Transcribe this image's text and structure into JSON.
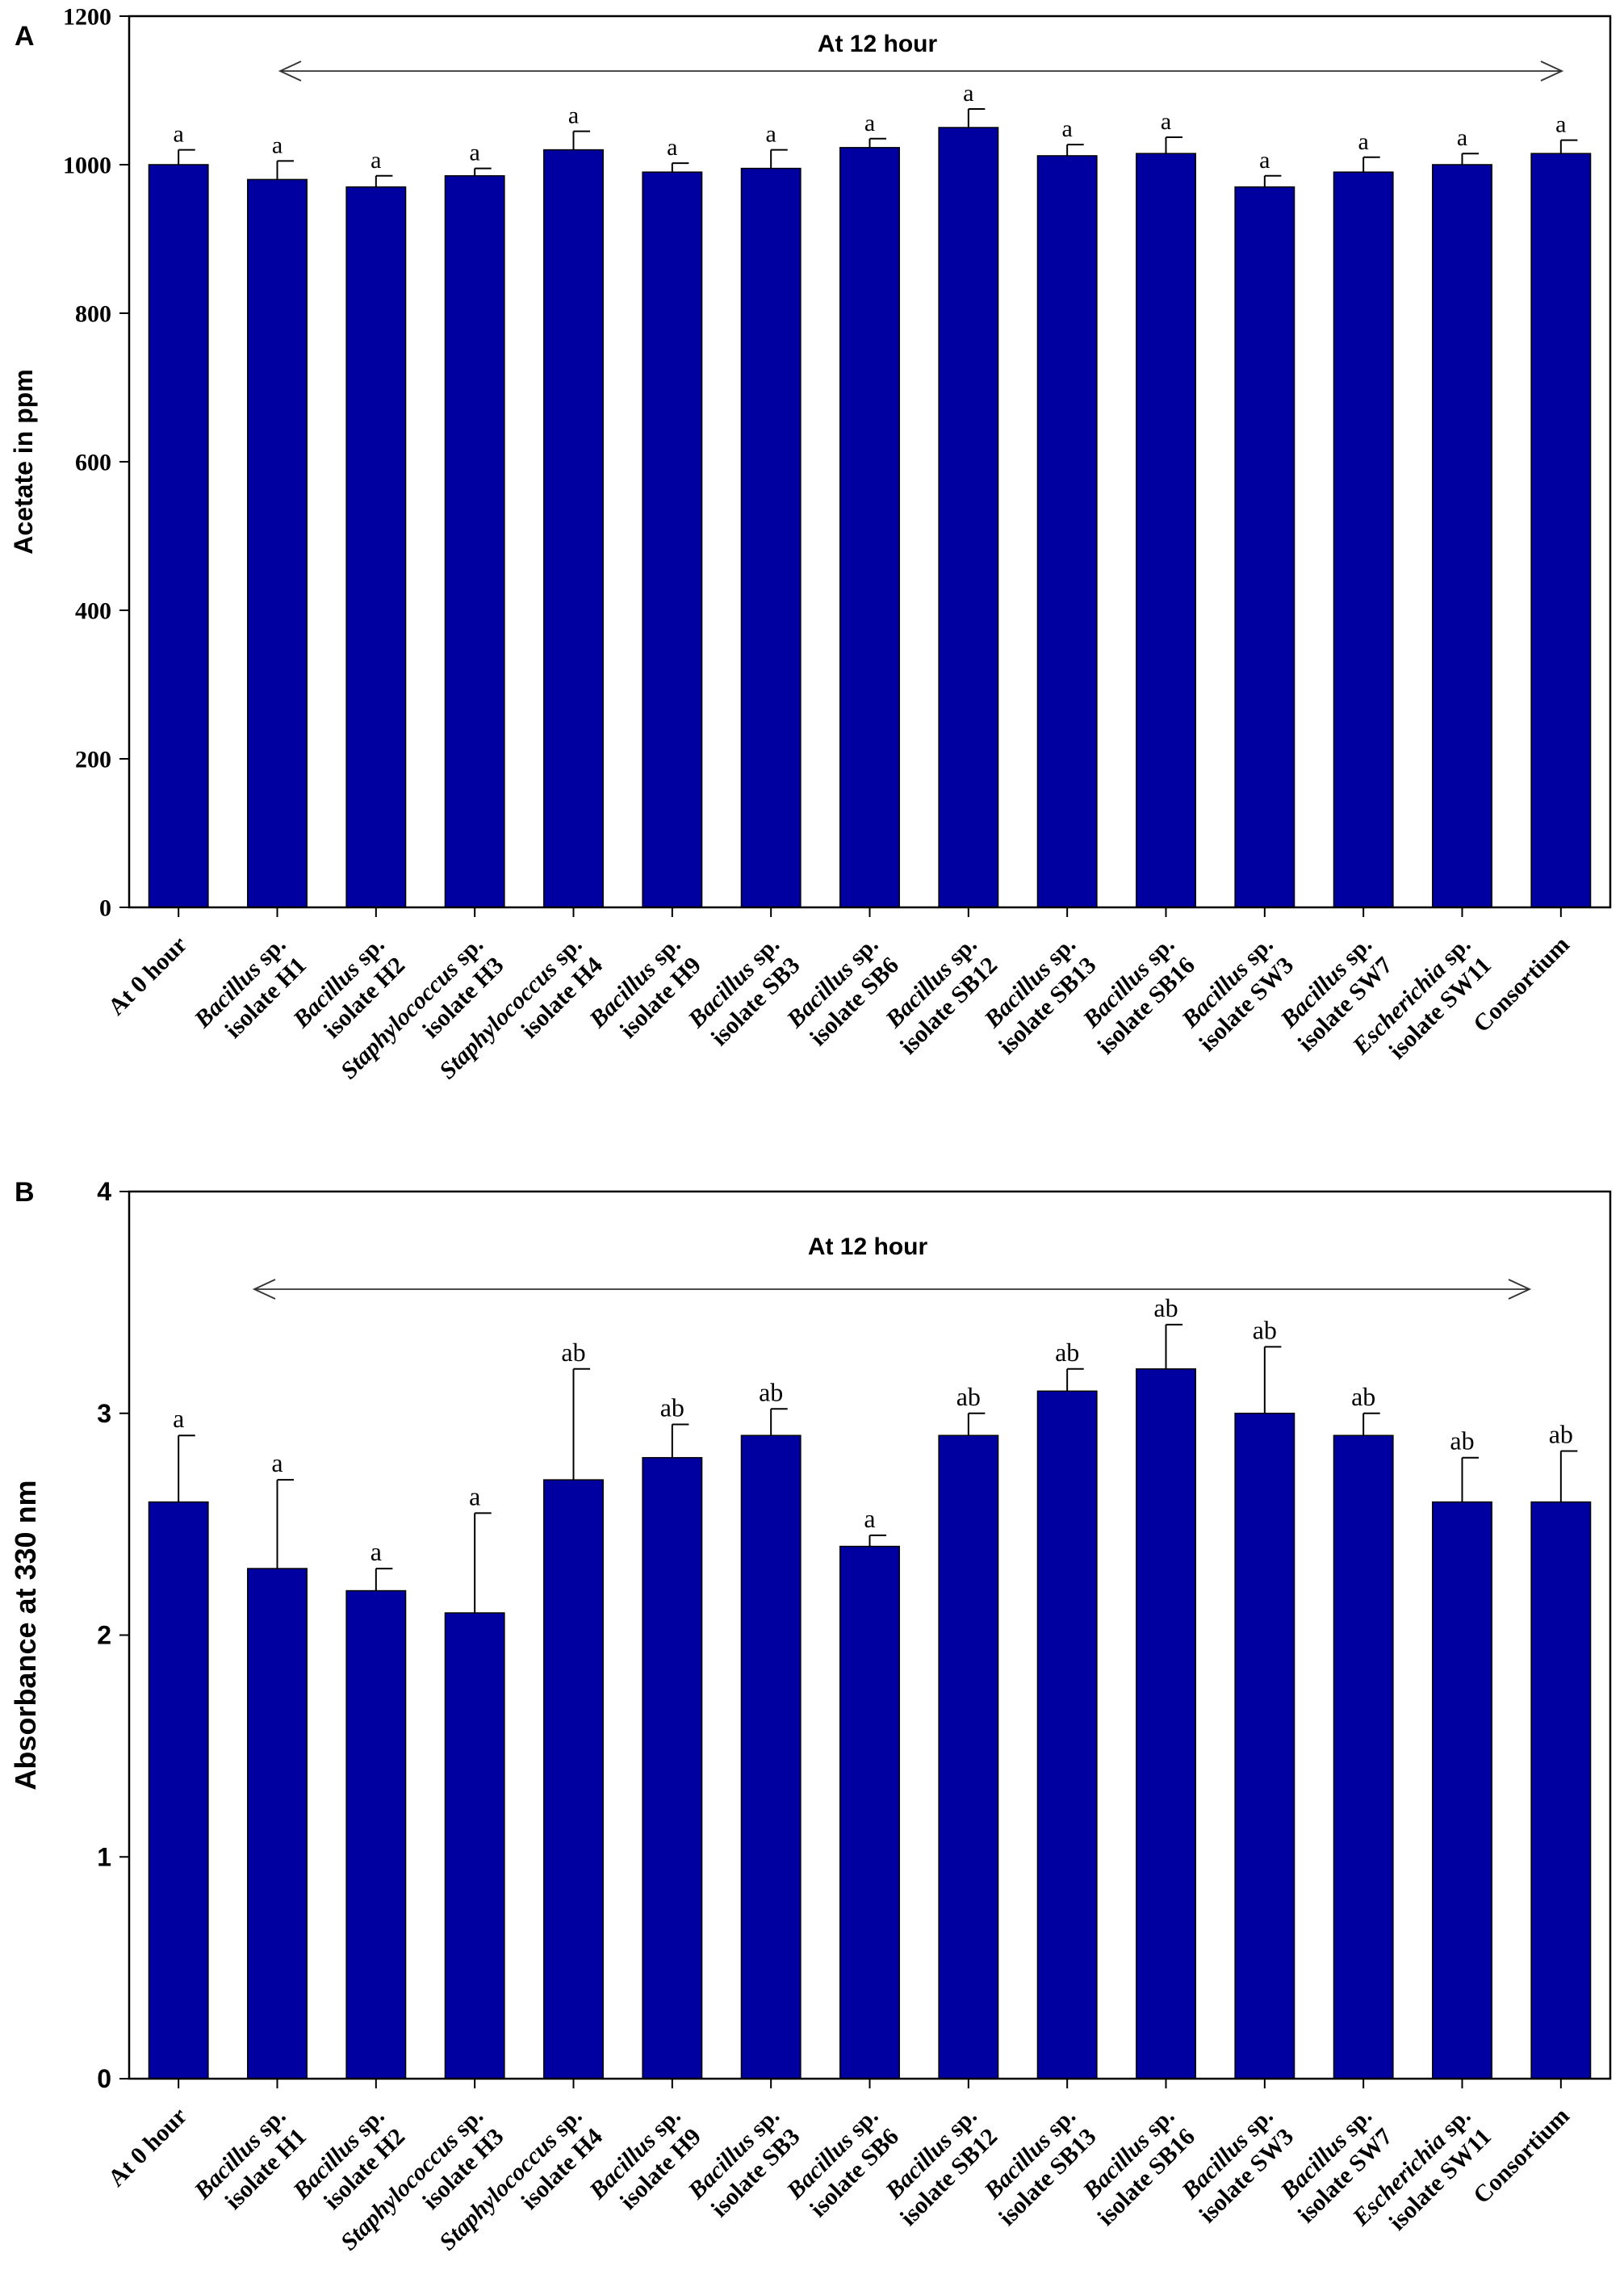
{
  "chart_data": [
    {
      "panel": "A",
      "type": "bar",
      "title": "",
      "annotation": "At 12 hour",
      "xlabel": "",
      "ylabel": "Acetate in ppm",
      "ylim": [
        0,
        1200
      ],
      "yticks": [
        "0",
        "200",
        "400",
        "600",
        "800",
        "1000",
        "1200"
      ],
      "grid": false,
      "bar_color": "#0000A0",
      "categories": [
        {
          "lines": [
            [
              {
                "t": "At 0 hour",
                "i": false
              }
            ]
          ]
        },
        {
          "lines": [
            [
              {
                "t": "Bacillus",
                "i": true
              },
              {
                "t": " sp.",
                "i": false
              }
            ],
            [
              {
                "t": "isolate H1",
                "i": false
              }
            ]
          ]
        },
        {
          "lines": [
            [
              {
                "t": "Bacillus",
                "i": true
              },
              {
                "t": " sp.",
                "i": false
              }
            ],
            [
              {
                "t": "isolate H2",
                "i": false
              }
            ]
          ]
        },
        {
          "lines": [
            [
              {
                "t": "Staphylococcus",
                "i": true
              },
              {
                "t": " sp.",
                "i": false
              }
            ],
            [
              {
                "t": "isolate H3",
                "i": false
              }
            ]
          ]
        },
        {
          "lines": [
            [
              {
                "t": "Staphylococcus",
                "i": true
              },
              {
                "t": " sp.",
                "i": false
              }
            ],
            [
              {
                "t": "isolate H4",
                "i": false
              }
            ]
          ]
        },
        {
          "lines": [
            [
              {
                "t": "Bacillus",
                "i": true
              },
              {
                "t": " sp.",
                "i": false
              }
            ],
            [
              {
                "t": "isolate H9",
                "i": false
              }
            ]
          ]
        },
        {
          "lines": [
            [
              {
                "t": "Bacillus",
                "i": true
              },
              {
                "t": " sp.",
                "i": false
              }
            ],
            [
              {
                "t": "isolate SB3",
                "i": false
              }
            ]
          ]
        },
        {
          "lines": [
            [
              {
                "t": "Bacillus",
                "i": true
              },
              {
                "t": " sp.",
                "i": false
              }
            ],
            [
              {
                "t": "isolate SB6",
                "i": false
              }
            ]
          ]
        },
        {
          "lines": [
            [
              {
                "t": "Bacillus",
                "i": true
              },
              {
                "t": " sp.",
                "i": false
              }
            ],
            [
              {
                "t": "isolate SB12",
                "i": false
              }
            ]
          ]
        },
        {
          "lines": [
            [
              {
                "t": "Bacillus",
                "i": true
              },
              {
                "t": " sp.",
                "i": false
              }
            ],
            [
              {
                "t": "isolate SB13",
                "i": false
              }
            ]
          ]
        },
        {
          "lines": [
            [
              {
                "t": "Bacillus",
                "i": true
              },
              {
                "t": " sp.",
                "i": false
              }
            ],
            [
              {
                "t": "isolate SB16",
                "i": false
              }
            ]
          ]
        },
        {
          "lines": [
            [
              {
                "t": "Bacillus",
                "i": true
              },
              {
                "t": " sp.",
                "i": false
              }
            ],
            [
              {
                "t": "isolate SW3",
                "i": false
              }
            ]
          ]
        },
        {
          "lines": [
            [
              {
                "t": "Bacillus",
                "i": true
              },
              {
                "t": " sp.",
                "i": false
              }
            ],
            [
              {
                "t": "isolate SW7",
                "i": false
              }
            ]
          ]
        },
        {
          "lines": [
            [
              {
                "t": "Escherichia",
                "i": true
              },
              {
                "t": " sp.",
                "i": false
              }
            ],
            [
              {
                "t": "isolate SW11",
                "i": false
              }
            ]
          ]
        },
        {
          "lines": [
            [
              {
                "t": "Consortium",
                "i": false
              }
            ]
          ]
        }
      ],
      "values": [
        1000,
        980,
        970,
        985,
        1020,
        990,
        995,
        1023,
        1050,
        1012,
        1015,
        970,
        990,
        1000,
        1015
      ],
      "errors": [
        20,
        25,
        15,
        10,
        25,
        12,
        25,
        12,
        25,
        15,
        22,
        15,
        20,
        15,
        18
      ],
      "significance": [
        "a",
        "a",
        "a",
        "a",
        "a",
        "a",
        "a",
        "a",
        "a",
        "a",
        "a",
        "a",
        "a",
        "a",
        "a"
      ]
    },
    {
      "panel": "B",
      "type": "bar",
      "title": "",
      "annotation": "At 12 hour",
      "xlabel": "",
      "ylabel": "Absorbance at 330 nm",
      "ylim": [
        0,
        4
      ],
      "yticks": [
        "0",
        "1",
        "2",
        "3",
        "4"
      ],
      "grid": false,
      "bar_color": "#0000A0",
      "categories": [
        {
          "lines": [
            [
              {
                "t": "At 0 hour",
                "i": false
              }
            ]
          ]
        },
        {
          "lines": [
            [
              {
                "t": "Bacillus",
                "i": true
              },
              {
                "t": " sp.",
                "i": false
              }
            ],
            [
              {
                "t": "isolate H1",
                "i": false
              }
            ]
          ]
        },
        {
          "lines": [
            [
              {
                "t": "Bacillus",
                "i": true
              },
              {
                "t": " sp.",
                "i": false
              }
            ],
            [
              {
                "t": "isolate H2",
                "i": false
              }
            ]
          ]
        },
        {
          "lines": [
            [
              {
                "t": "Staphylococcus",
                "i": true
              },
              {
                "t": " sp.",
                "i": false
              }
            ],
            [
              {
                "t": "isolate H3",
                "i": false
              }
            ]
          ]
        },
        {
          "lines": [
            [
              {
                "t": "Staphylococcus",
                "i": true
              },
              {
                "t": " sp.",
                "i": false
              }
            ],
            [
              {
                "t": "isolate H4",
                "i": false
              }
            ]
          ]
        },
        {
          "lines": [
            [
              {
                "t": "Bacillus",
                "i": true
              },
              {
                "t": " sp.",
                "i": false
              }
            ],
            [
              {
                "t": "isolate H9",
                "i": false
              }
            ]
          ]
        },
        {
          "lines": [
            [
              {
                "t": "Bacillus",
                "i": true
              },
              {
                "t": " sp.",
                "i": false
              }
            ],
            [
              {
                "t": "isolate SB3",
                "i": false
              }
            ]
          ]
        },
        {
          "lines": [
            [
              {
                "t": "Bacillus",
                "i": true
              },
              {
                "t": " sp.",
                "i": false
              }
            ],
            [
              {
                "t": "isolate SB6",
                "i": false
              }
            ]
          ]
        },
        {
          "lines": [
            [
              {
                "t": "Bacillus",
                "i": true
              },
              {
                "t": " sp.",
                "i": false
              }
            ],
            [
              {
                "t": "isolate SB12",
                "i": false
              }
            ]
          ]
        },
        {
          "lines": [
            [
              {
                "t": "Bacillus",
                "i": true
              },
              {
                "t": " sp.",
                "i": false
              }
            ],
            [
              {
                "t": "isolate SB13",
                "i": false
              }
            ]
          ]
        },
        {
          "lines": [
            [
              {
                "t": "Bacillus",
                "i": true
              },
              {
                "t": " sp.",
                "i": false
              }
            ],
            [
              {
                "t": "isolate SB16",
                "i": false
              }
            ]
          ]
        },
        {
          "lines": [
            [
              {
                "t": "Bacillus",
                "i": true
              },
              {
                "t": " sp.",
                "i": false
              }
            ],
            [
              {
                "t": "isolate SW3",
                "i": false
              }
            ]
          ]
        },
        {
          "lines": [
            [
              {
                "t": "Bacillus",
                "i": true
              },
              {
                "t": " sp.",
                "i": false
              }
            ],
            [
              {
                "t": "isolate SW7",
                "i": false
              }
            ]
          ]
        },
        {
          "lines": [
            [
              {
                "t": "Escherichia",
                "i": true
              },
              {
                "t": " sp.",
                "i": false
              }
            ],
            [
              {
                "t": "isolate SW11",
                "i": false
              }
            ]
          ]
        },
        {
          "lines": [
            [
              {
                "t": "Consortium",
                "i": false
              }
            ]
          ]
        }
      ],
      "values": [
        2.6,
        2.3,
        2.2,
        2.1,
        2.7,
        2.8,
        2.9,
        2.4,
        2.9,
        3.1,
        3.2,
        3.0,
        2.9,
        2.6,
        2.6
      ],
      "errors": [
        0.3,
        0.4,
        0.1,
        0.45,
        0.5,
        0.15,
        0.12,
        0.05,
        0.1,
        0.1,
        0.2,
        0.3,
        0.1,
        0.2,
        0.23
      ],
      "significance": [
        "a",
        "a",
        "a",
        "a",
        "ab",
        "ab",
        "ab",
        "a",
        "ab",
        "ab",
        "ab",
        "ab",
        "ab",
        "ab",
        "ab"
      ]
    }
  ]
}
